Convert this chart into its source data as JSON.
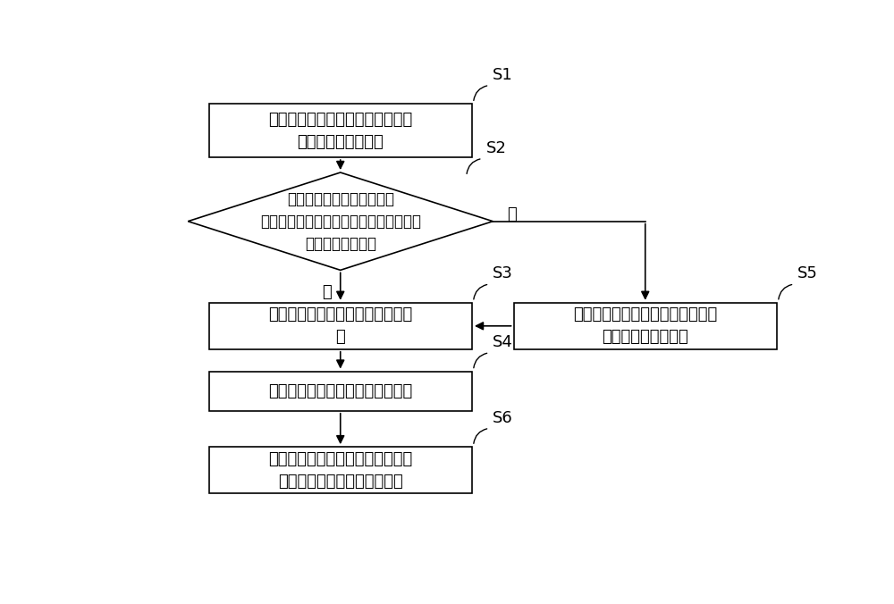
{
  "bg_color": "#ffffff",
  "box_border_color": "#000000",
  "arrow_color": "#000000",
  "text_color": "#000000",
  "font_size": 13,
  "label_font_size": 13,
  "S1_text": "光频域反射计进行光程测试，得到\n各波长通道的光程值",
  "S2_text": "数据中心对光程值进行分析\n处理，得到光程值数组并判断各数组是否\n符合预设加工条件",
  "S3_text": "设定光程基准值，得到光纤加工任\n务",
  "S4_text": "根据光程基准值执行光纤加工任务",
  "S5_text": "对不符合预设条件的光纤进行补偿\n后执行光纤加工任务",
  "S6_text": "测试中心对各通道的波长及信号调\n制频率进行相位一致性测试。",
  "yes_label": "是",
  "no_label": "否"
}
